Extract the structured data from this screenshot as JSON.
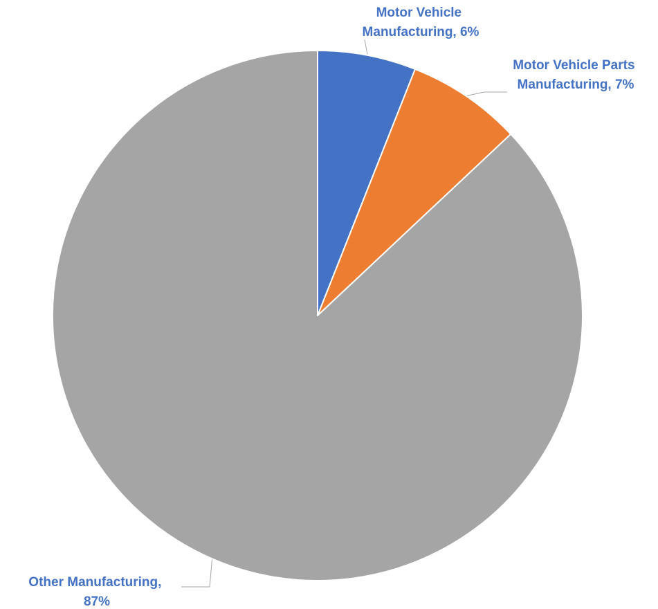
{
  "chart_data": {
    "type": "pie",
    "title": "",
    "categories": [
      "Motor Vehicle Manufacturing",
      "Motor Vehicle Parts Manufacturing",
      "Other Manufacturing"
    ],
    "values": [
      6,
      7,
      87
    ],
    "unit": "%",
    "colors": [
      "#4472C4",
      "#ED7D31",
      "#A5A5A5"
    ],
    "label_color": "#4472C4",
    "leader_line_color": "#A5A5A5",
    "start_angle": "12 o'clock",
    "direction": "clockwise",
    "legend": "none",
    "data_labels": [
      {
        "line1": "Motor Vehicle",
        "line2": "Manufacturing, 6%"
      },
      {
        "line1": "Motor Vehicle Parts",
        "line2": "Manufacturing, 7%"
      },
      {
        "line1": "Other Manufacturing,",
        "line2": "87%"
      }
    ]
  }
}
